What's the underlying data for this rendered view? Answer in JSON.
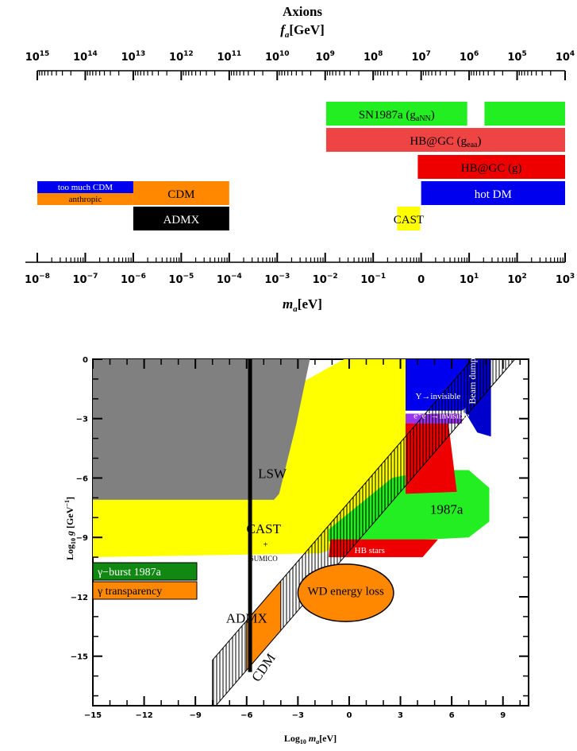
{
  "chart_data": [
    {
      "type": "bar",
      "title": "Axions",
      "subtitle_var": "f",
      "subtitle_sub": "a",
      "subtitle_unit": "[GeV]",
      "xlabel_var": "m",
      "xlabel_sub": "a",
      "xlabel_unit": "[eV]",
      "x_scale": "log",
      "top_axis_ticks": [
        {
          "base": "10",
          "exp": "15",
          "value": 15
        },
        {
          "base": "10",
          "exp": "14",
          "value": 14
        },
        {
          "base": "10",
          "exp": "13",
          "value": 13
        },
        {
          "base": "10",
          "exp": "12",
          "value": 12
        },
        {
          "base": "10",
          "exp": "11",
          "value": 11
        },
        {
          "base": "10",
          "exp": "10",
          "value": 10
        },
        {
          "base": "10",
          "exp": "9",
          "value": 9
        },
        {
          "base": "10",
          "exp": "8",
          "value": 8
        },
        {
          "base": "10",
          "exp": "7",
          "value": 7
        },
        {
          "base": "10",
          "exp": "6",
          "value": 6
        },
        {
          "base": "10",
          "exp": "5",
          "value": 5
        },
        {
          "base": "10",
          "exp": "4",
          "value": 4
        }
      ],
      "bottom_axis_ticks": [
        {
          "base": "10",
          "exp": "−8",
          "value": -8
        },
        {
          "base": "10",
          "exp": "−7",
          "value": -7
        },
        {
          "base": "10",
          "exp": "−6",
          "value": -6
        },
        {
          "base": "10",
          "exp": "−5",
          "value": -5
        },
        {
          "base": "10",
          "exp": "−4",
          "value": -4
        },
        {
          "base": "10",
          "exp": "−3",
          "value": -3
        },
        {
          "base": "10",
          "exp": "−2",
          "value": -2
        },
        {
          "base": "10",
          "exp": "−1",
          "value": -1
        },
        {
          "base": "0",
          "exp": "",
          "value": 0
        },
        {
          "base": "10",
          "exp": "1",
          "value": 1
        },
        {
          "base": "10",
          "exp": "2",
          "value": 2
        },
        {
          "base": "10",
          "exp": "3",
          "value": 3
        }
      ],
      "bars": [
        {
          "label": "SN1987a (g",
          "label_sub": "aNN",
          "label_tail": ")",
          "x_from_log_ma": -1.98,
          "x_to_log_ma": 0.96,
          "row": 0,
          "color": "#22ee22",
          "text_color": "#000000"
        },
        {
          "label": "",
          "label_sub": "",
          "label_tail": "",
          "x_from_log_ma": 1.32,
          "x_to_log_ma": 3.0,
          "row": 0,
          "color": "#22ee22",
          "text_color": "#000000"
        },
        {
          "label": "HB@GC (g",
          "label_sub": "eaa",
          "label_tail": ")",
          "x_from_log_ma": -1.98,
          "x_to_log_ma": 3.0,
          "row": 1,
          "color": "#ee4444",
          "text_color": "#000000"
        },
        {
          "label": "HB@GC (g)",
          "label_sub": "",
          "label_tail": "",
          "x_from_log_ma": -0.07,
          "x_to_log_ma": 3.0,
          "row": 2,
          "color": "#ee0000",
          "text_color": "#000000"
        },
        {
          "label": "hot DM",
          "label_sub": "",
          "label_tail": "",
          "x_from_log_ma": 0.0,
          "x_to_log_ma": 3.0,
          "row": 3,
          "color": "#0000ee",
          "text_color": "#ffffff"
        },
        {
          "label": "CDM",
          "label_sub": "",
          "label_tail": "",
          "x_from_log_ma": -6.0,
          "x_to_log_ma": -4.0,
          "row": 3,
          "color": "#ff8800",
          "text_color": "#000000"
        },
        {
          "label": "ADMX",
          "label_sub": "",
          "label_tail": "",
          "x_from_log_ma": -6.0,
          "x_to_log_ma": -4.0,
          "row": 4,
          "color": "#000000",
          "text_color": "#ffffff"
        },
        {
          "label": "CAST",
          "label_sub": "",
          "label_tail": "",
          "x_from_log_ma": -0.5,
          "x_to_log_ma": -0.02,
          "row": 4,
          "color": "#ffff00",
          "text_color": "#000000"
        }
      ],
      "small_bars": [
        {
          "label": "too much CDM",
          "x_from_log_ma": -8.0,
          "x_to_log_ma": -6.0,
          "half": "top",
          "color": "#0000ee",
          "text_color": "#ffffff"
        },
        {
          "label": "anthropic",
          "x_from_log_ma": -8.0,
          "x_to_log_ma": -6.0,
          "half": "bottom",
          "color": "#ff8800",
          "text_color": "#000000"
        }
      ]
    },
    {
      "type": "area",
      "xlabel_prefix": "Log",
      "xlabel_prefix_sub": "10",
      "xlabel_var": "m",
      "xlabel_sub": "a",
      "xlabel_unit": "[eV]",
      "ylabel_prefix": "Log",
      "ylabel_prefix_sub": "10",
      "ylabel_var": "g",
      "ylabel_unit": "[GeV",
      "ylabel_unit_sup": "−1",
      "ylabel_close": "]",
      "xlim": [
        -15,
        10.5
      ],
      "ylim": [
        -17.5,
        0
      ],
      "xticks": [
        "−15",
        "−12",
        "−9",
        "−6",
        "−3",
        "0",
        "3",
        "6",
        "9"
      ],
      "xtick_values": [
        -15,
        -12,
        -9,
        -6,
        -3,
        0,
        3,
        6,
        9
      ],
      "yticks": [
        "0",
        "−3",
        "−6",
        "−9",
        "−12",
        "−15"
      ],
      "ytick_values": [
        0,
        -3,
        -6,
        -9,
        -12,
        -15
      ],
      "regions": [
        {
          "name": "CAST",
          "sub": "SUMICO",
          "color": "#ffff00",
          "points": [
            [
              -15,
              -7.0
            ],
            [
              -0.3,
              0
            ],
            [
              3.3,
              0
            ],
            [
              3.3,
              -8.3
            ],
            [
              -1.7,
              -9.8
            ],
            [
              -15,
              -10.0
            ]
          ]
        },
        {
          "name": "LSW",
          "color": "#808080",
          "points": [
            [
              -15,
              0
            ],
            [
              -2.3,
              0
            ],
            [
              -3.1,
              -3.3
            ],
            [
              -4.1,
              -6.8
            ],
            [
              -4.4,
              -7.1
            ],
            [
              -15,
              -7.1
            ]
          ]
        },
        {
          "name": "1987a",
          "color": "#22ee22",
          "points": [
            [
              -1.2,
              -9.2
            ],
            [
              -1.2,
              -8.6
            ],
            [
              2.5,
              -6.0
            ],
            [
              4.7,
              -5.6
            ],
            [
              7.0,
              -5.6
            ],
            [
              8.2,
              -6.5
            ],
            [
              8.2,
              -8.2
            ],
            [
              7.0,
              -9.0
            ],
            [
              2.4,
              -9.2
            ]
          ]
        },
        {
          "name": "HB stars",
          "color": "#ee0000",
          "points": [
            [
              -1.1,
              -9.1
            ],
            [
              5.2,
              -9.1
            ],
            [
              4.3,
              -10.0
            ],
            [
              -1.2,
              -10.0
            ]
          ]
        },
        {
          "name": "red top",
          "color": "#ee0000",
          "points": [
            [
              3.3,
              -3.2
            ],
            [
              5.8,
              -3.2
            ],
            [
              6.3,
              -6.7
            ],
            [
              3.3,
              -6.8
            ]
          ]
        },
        {
          "name": "Y→invisible",
          "color": "#0000ee",
          "points": [
            [
              3.3,
              0
            ],
            [
              8.2,
              0
            ],
            [
              8.2,
              -1.6
            ],
            [
              6.6,
              -2.6
            ],
            [
              3.3,
              -2.6
            ]
          ]
        },
        {
          "name": "Beam dump",
          "color": "#0000cc",
          "points": [
            [
              6.8,
              0
            ],
            [
              8.3,
              0
            ],
            [
              8.3,
              -3.9
            ],
            [
              7.5,
              -3.7
            ],
            [
              6.8,
              -2.7
            ]
          ]
        }
      ],
      "labels": [
        {
          "text": "LSW",
          "x": -4.5,
          "y": -6.0,
          "color": "#000000"
        },
        {
          "text": "CAST",
          "x": -5.0,
          "y": -8.8,
          "color": "#000000"
        },
        {
          "text": "+",
          "x": -4.9,
          "y": -9.5,
          "color": "#000000"
        },
        {
          "text": "SUMICO",
          "x": -5.0,
          "y": -10.2,
          "color": "#000000"
        },
        {
          "text": "1987a",
          "x": 5.7,
          "y": -7.8,
          "color": "#000000"
        },
        {
          "text": "HB stars",
          "x": 1.2,
          "y": -9.8,
          "color": "#ffffff"
        },
        {
          "text": "Y→invisible",
          "x": 5.2,
          "y": -2.0,
          "color": "#ffffff"
        },
        {
          "text": "e⁺e⁻→invisible",
          "x": 5.4,
          "y": -3.0,
          "color": "#ffffff"
        },
        {
          "text": "Beam dump",
          "x": 7.4,
          "y": -1.1,
          "color": "#ffffff"
        },
        {
          "text": "WD energy loss",
          "x": -0.2,
          "y": -11.9,
          "color": "#000000"
        },
        {
          "text": "ADMX",
          "x": -6.0,
          "y": -13.3,
          "color": "#000000"
        },
        {
          "text": "CDM",
          "x": -4.8,
          "y": -15.7,
          "color": "#000000"
        }
      ],
      "ellipse": {
        "name": "WD energy loss",
        "cx": -0.2,
        "cy": -11.8,
        "rx": 2.8,
        "ry": 1.45,
        "color": "#ff8800"
      },
      "admx_line_x": -5.8,
      "cdm_segment": {
        "x_from": -6.0,
        "x_to": -4.0,
        "color": "#ff8800"
      },
      "hatched_band": {
        "x_from": -8.0,
        "x_to": 10.5
      },
      "legend_boxes": [
        {
          "text": "γ−burst 1987a",
          "color": "#118811",
          "text_color": "#ffffff"
        },
        {
          "text": "γ transparency",
          "color": "#ff8800",
          "text_color": "#000000"
        }
      ]
    }
  ]
}
